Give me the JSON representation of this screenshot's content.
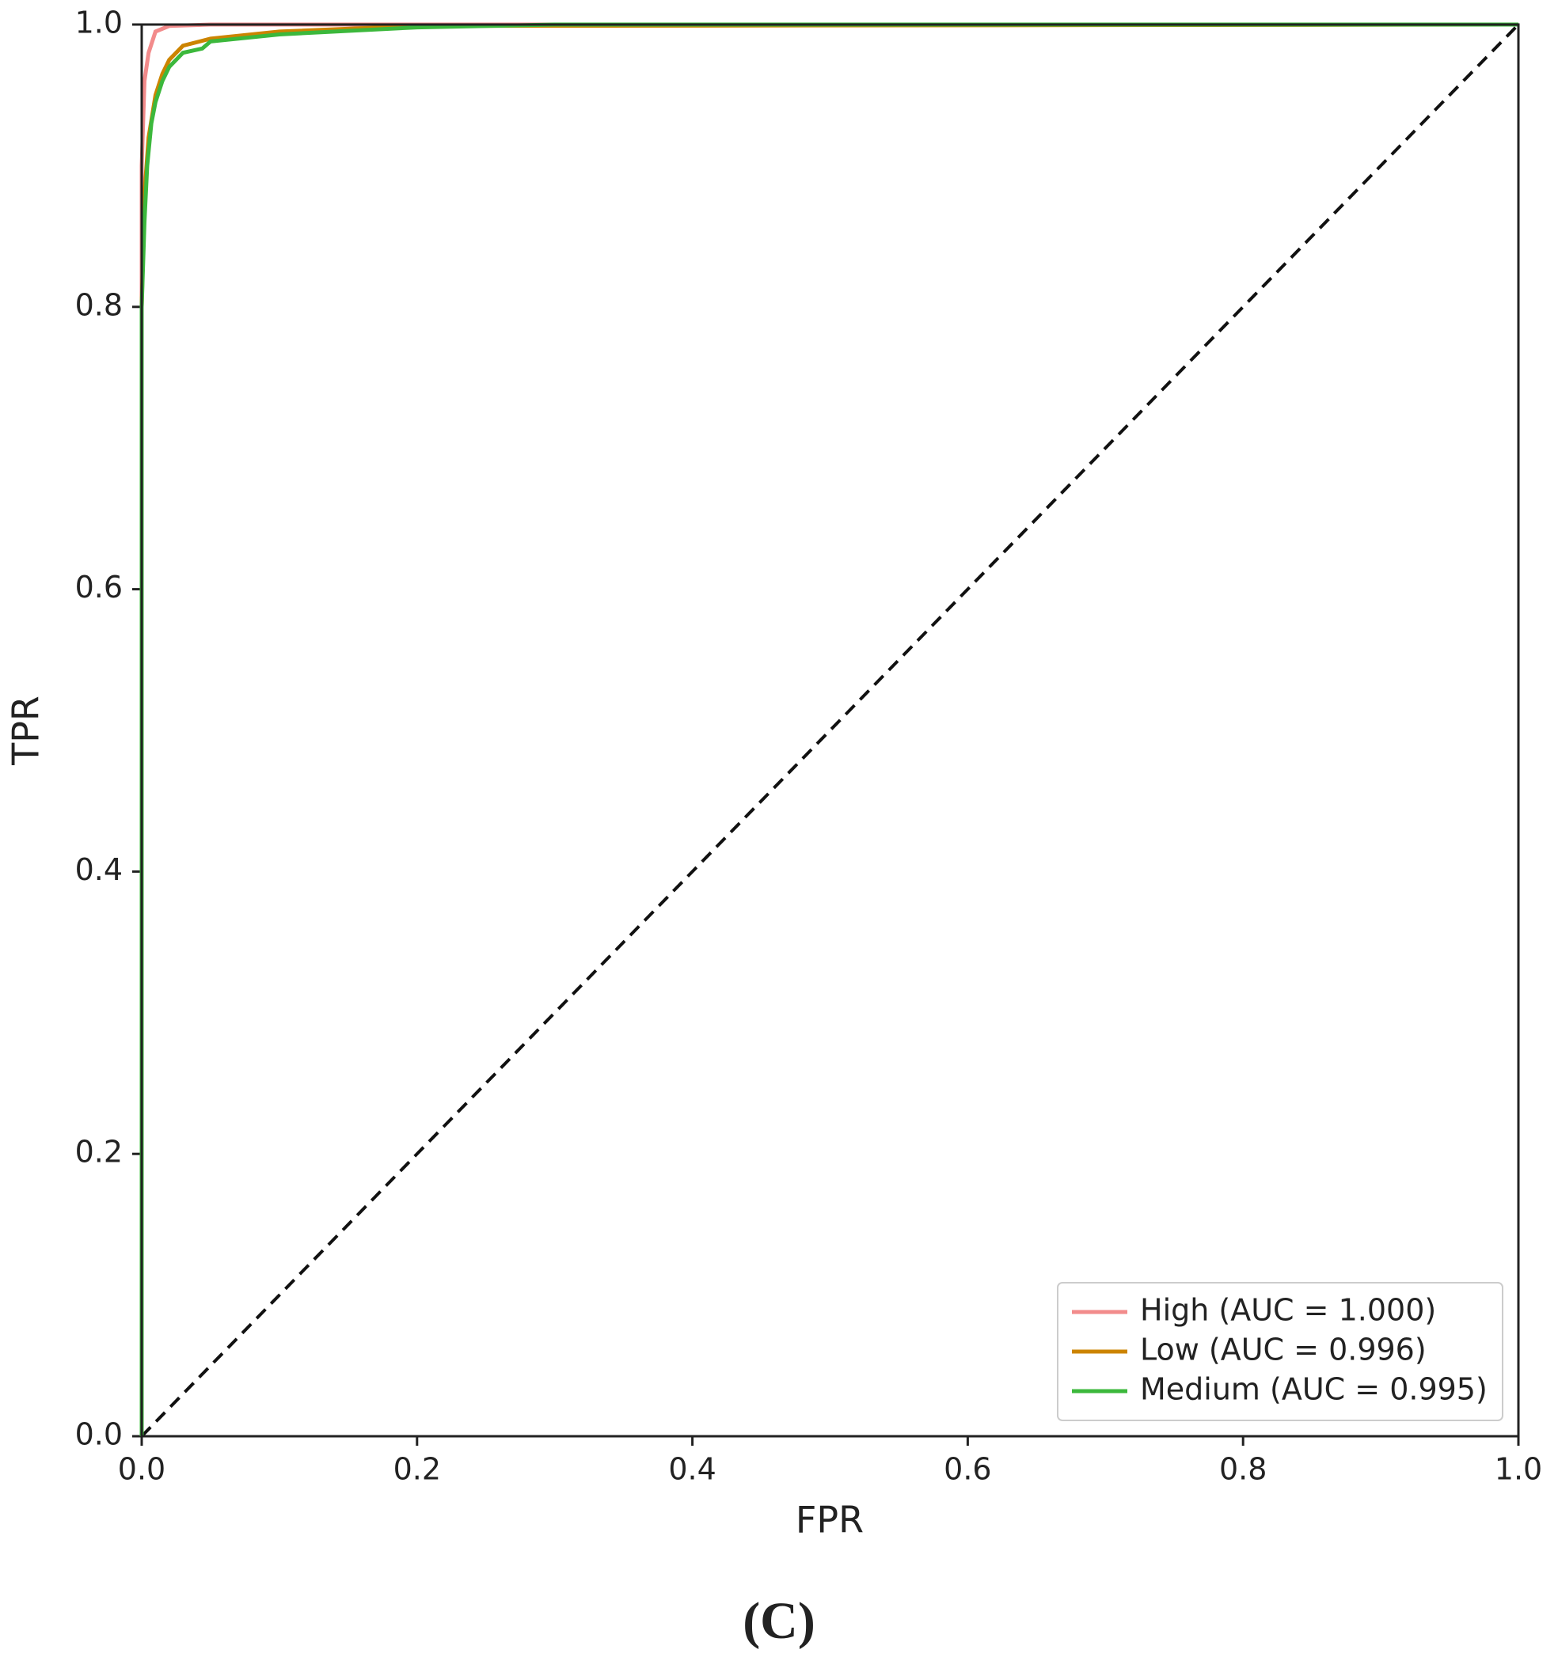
{
  "chart_data": {
    "type": "line",
    "xlabel": "FPR",
    "ylabel": "TPR",
    "caption": "(C)",
    "xlim": [
      0,
      1
    ],
    "ylim": [
      0,
      1
    ],
    "xticks": [
      {
        "value": 0,
        "label": "0.0"
      },
      0.2,
      0.4,
      0.6,
      0.8,
      {
        "value": 1,
        "label": "1.0"
      }
    ],
    "yticks": [
      {
        "value": 0,
        "label": "0.0"
      },
      0.2,
      0.4,
      0.6,
      0.8,
      {
        "value": 1,
        "label": "1.0"
      }
    ],
    "legend": "lower right",
    "diagonal": true,
    "series": [
      {
        "name": "High (AUC = 1.000)",
        "color": "#f28b8b",
        "x": [
          0,
          0,
          0.002,
          0.005,
          0.01,
          0.02,
          0.05,
          1
        ],
        "y": [
          0,
          0.9,
          0.96,
          0.98,
          0.995,
          0.999,
          1,
          1
        ]
      },
      {
        "name": "Low (AUC = 0.996)",
        "color": "#cc8400",
        "x": [
          0,
          0,
          0.002,
          0.005,
          0.01,
          0.015,
          0.02,
          0.03,
          0.05,
          0.1,
          0.2,
          1
        ],
        "y": [
          0,
          0.8,
          0.88,
          0.92,
          0.95,
          0.965,
          0.975,
          0.985,
          0.99,
          0.995,
          0.999,
          1
        ]
      },
      {
        "name": "Medium (AUC = 0.995)",
        "color": "#3cb83c",
        "x": [
          0,
          0,
          0.002,
          0.004,
          0.007,
          0.01,
          0.015,
          0.02,
          0.03,
          0.044,
          0.05,
          0.1,
          0.2,
          0.3,
          1
        ],
        "y": [
          0,
          0.8,
          0.86,
          0.9,
          0.93,
          0.945,
          0.96,
          0.97,
          0.98,
          0.983,
          0.988,
          0.993,
          0.998,
          1,
          1
        ]
      }
    ]
  }
}
